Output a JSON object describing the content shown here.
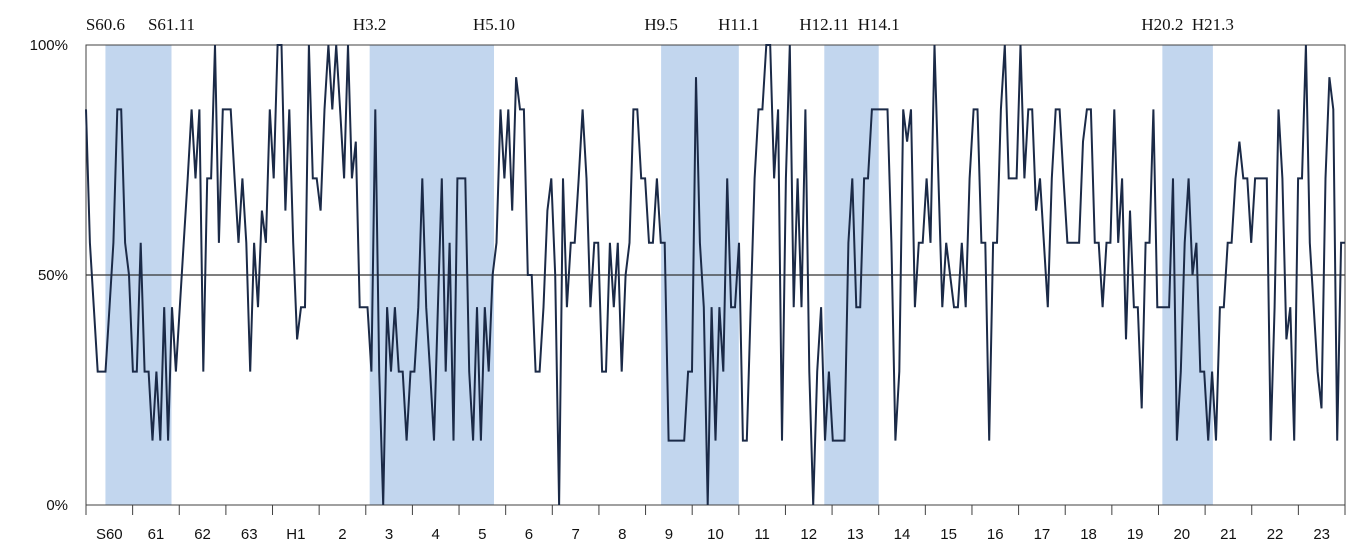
{
  "chart_data": {
    "type": "line",
    "title": "",
    "xlabel": "",
    "ylabel": "",
    "y_ticks": [
      "0%",
      "50%",
      "100%"
    ],
    "ylim": [
      0,
      100
    ],
    "reference_line": 50,
    "x_tick_labels": [
      "S60",
      "61",
      "62",
      "63",
      "H1",
      "2",
      "3",
      "4",
      "5",
      "6",
      "7",
      "8",
      "9",
      "10",
      "11",
      "12",
      "13",
      "14",
      "15",
      "16",
      "17",
      "18",
      "19",
      "20",
      "21",
      "22",
      "23"
    ],
    "months_span": 324,
    "shaded_periods": [
      {
        "start_label": "S60.6",
        "end_label": "S61.11",
        "start_month": 5,
        "end_month": 22
      },
      {
        "start_label": "H3.2",
        "end_label": "H5.10",
        "start_month": 73,
        "end_month": 105
      },
      {
        "start_label": "H9.5",
        "end_label": "H11.1",
        "start_month": 148,
        "end_month": 168
      },
      {
        "start_label": "H12.11",
        "end_label": "H14.1",
        "start_month": 190,
        "end_month": 204
      },
      {
        "start_label": "H20.2",
        "end_label": "H21.3",
        "start_month": 277,
        "end_month": 290
      }
    ],
    "series": [
      {
        "color": "#1b2a47",
        "values": [
          86,
          57,
          43,
          29,
          29,
          29,
          43,
          57,
          86,
          86,
          57,
          50,
          29,
          29,
          57,
          29,
          29,
          14,
          29,
          14,
          43,
          14,
          43,
          29,
          43,
          57,
          71,
          86,
          71,
          86,
          29,
          71,
          71,
          100,
          57,
          86,
          86,
          86,
          71,
          57,
          71,
          57,
          29,
          57,
          43,
          64,
          57,
          86,
          71,
          100,
          100,
          64,
          86,
          57,
          36,
          43,
          43,
          100,
          71,
          71,
          64,
          86,
          100,
          86,
          100,
          86,
          71,
          100,
          71,
          79,
          43,
          43,
          43,
          29,
          86,
          29,
          0,
          43,
          29,
          43,
          29,
          29,
          14,
          29,
          29,
          43,
          71,
          43,
          29,
          14,
          43,
          71,
          29,
          57,
          14,
          71,
          71,
          71,
          29,
          14,
          43,
          14,
          43,
          29,
          50,
          57,
          86,
          71,
          86,
          64,
          93,
          86,
          86,
          50,
          50,
          29,
          29,
          43,
          64,
          71,
          50,
          0,
          71,
          43,
          57,
          57,
          71,
          86,
          71,
          43,
          57,
          57,
          29,
          29,
          57,
          43,
          57,
          29,
          50,
          57,
          86,
          86,
          71,
          71,
          57,
          57,
          71,
          57,
          57,
          14,
          14,
          14,
          14,
          14,
          29,
          29,
          93,
          57,
          43,
          0,
          43,
          14,
          43,
          29,
          71,
          43,
          43,
          57,
          14,
          14,
          43,
          71,
          86,
          86,
          100,
          100,
          71,
          86,
          14,
          71,
          100,
          43,
          71,
          43,
          86,
          29,
          0,
          29,
          43,
          14,
          29,
          14,
          14,
          14,
          14,
          57,
          71,
          43,
          43,
          71,
          71,
          86,
          86,
          86,
          86,
          86,
          57,
          14,
          29,
          86,
          79,
          86,
          43,
          57,
          57,
          71,
          57,
          100,
          71,
          43,
          57,
          50,
          43,
          43,
          57,
          43,
          71,
          86,
          86,
          57,
          57,
          14,
          57,
          57,
          86,
          100,
          71,
          71,
          71,
          100,
          71,
          86,
          86,
          64,
          71,
          57,
          43,
          71,
          86,
          86,
          71,
          57,
          57,
          57,
          57,
          79,
          86,
          86,
          57,
          57,
          43,
          57,
          57,
          86,
          57,
          71,
          36,
          64,
          43,
          43,
          21,
          57,
          57,
          86,
          43,
          43,
          43,
          43,
          71,
          14,
          29,
          57,
          71,
          50,
          57,
          29,
          29,
          14,
          29,
          14,
          43,
          43,
          57,
          57,
          71,
          79,
          71,
          71,
          57,
          71,
          71,
          71,
          71,
          14,
          43,
          86,
          71,
          36,
          43,
          14,
          71,
          71,
          100,
          57,
          43,
          29,
          21,
          71,
          93,
          86,
          14,
          57,
          57
        ]
      }
    ]
  }
}
